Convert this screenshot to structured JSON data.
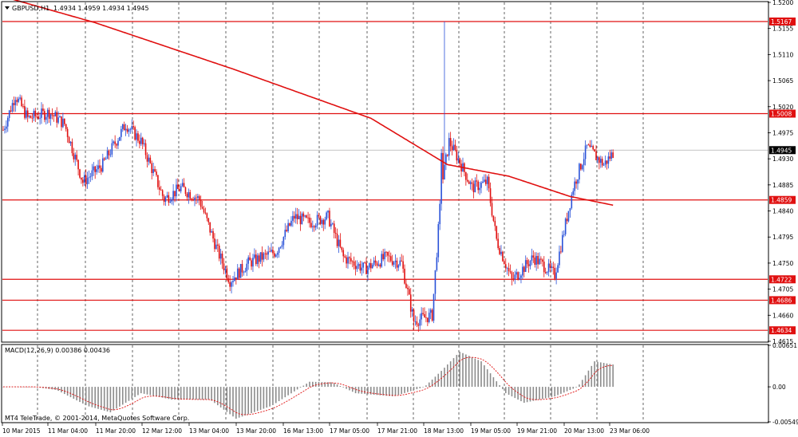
{
  "header": {
    "symbol_label": "GBPUSD,H1",
    "ohlc": "1.4934 1.4959 1.4934 1.4945"
  },
  "macd": {
    "label": "MACD(12,26,9) 0.00386 0.00436",
    "axis_labels": [
      "0.00651",
      "0.00",
      "-0.00549"
    ]
  },
  "watermark": "MT4 TeleTrade, © 2001-2014, MetaQuotes Software Corp.",
  "price_axis": {
    "labels": [
      "1.5200",
      "1.5155",
      "1.5110",
      "1.5065",
      "1.5020",
      "1.4975",
      "1.4930",
      "1.4885",
      "1.4840",
      "1.4795",
      "1.4750",
      "1.4705",
      "1.4660",
      "1.4615"
    ],
    "current_price": "1.4945"
  },
  "levels": [
    {
      "label": "1.5167",
      "value": 1.5167
    },
    {
      "label": "1.5008",
      "value": 1.5008
    },
    {
      "label": "1.4859",
      "value": 1.4859
    },
    {
      "label": "1.4722",
      "value": 1.4722
    },
    {
      "label": "1.4686",
      "value": 1.4686
    },
    {
      "label": "1.4634",
      "value": 1.4634
    }
  ],
  "time_axis": {
    "labels": [
      "10 Mar 2015",
      "11 Mar 04:00",
      "11 Mar 20:00",
      "12 Mar 12:00",
      "13 Mar 04:00",
      "13 Mar 20:00",
      "16 Mar 13:00",
      "17 Mar 05:00",
      "17 Mar 21:00",
      "18 Mar 13:00",
      "19 Mar 05:00",
      "19 Mar 21:00",
      "20 Mar 13:00",
      "23 Mar 06:00"
    ]
  },
  "colors": {
    "bull": "#2a52d8",
    "bear": "#e01010",
    "level_line": "#e01010",
    "ma_line": "#e01010",
    "macd_hist": "#8c8c8c",
    "signal_line": "#e01010",
    "grid": "#000000",
    "label_bg": "#e01010",
    "current_bg": "#000000"
  },
  "chart_data": {
    "type": "candlestick",
    "indicator": "MACD(12,26,9)",
    "price_range": [
      1.4615,
      1.52
    ],
    "macd_range": [
      -0.00549,
      0.00651
    ],
    "price_anchors": [
      [
        0,
        1.498
      ],
      [
        8,
        1.504
      ],
      [
        16,
        1.5
      ],
      [
        30,
        1.501
      ],
      [
        40,
        1.499
      ],
      [
        52,
        1.489
      ],
      [
        65,
        1.492
      ],
      [
        80,
        1.499
      ],
      [
        90,
        1.496
      ],
      [
        105,
        1.486
      ],
      [
        116,
        1.488
      ],
      [
        128,
        1.486
      ],
      [
        140,
        1.477
      ],
      [
        148,
        1.472
      ],
      [
        160,
        1.475
      ],
      [
        178,
        1.477
      ],
      [
        190,
        1.483
      ],
      [
        200,
        1.482
      ],
      [
        212,
        1.483
      ],
      [
        222,
        1.476
      ],
      [
        236,
        1.474
      ],
      [
        250,
        1.476
      ],
      [
        260,
        1.475
      ],
      [
        268,
        1.465
      ],
      [
        280,
        1.466
      ],
      [
        286,
        1.488
      ],
      [
        291,
        1.496
      ],
      [
        297,
        1.493
      ],
      [
        306,
        1.488
      ],
      [
        316,
        1.489
      ],
      [
        322,
        1.479
      ],
      [
        332,
        1.472
      ],
      [
        346,
        1.476
      ],
      [
        360,
        1.473
      ],
      [
        372,
        1.488
      ],
      [
        381,
        1.495
      ],
      [
        392,
        1.492
      ],
      [
        398,
        1.494
      ]
    ],
    "ma_anchors": [
      [
        0,
        1.521
      ],
      [
        60,
        1.5165
      ],
      [
        150,
        1.5085
      ],
      [
        240,
        1.5
      ],
      [
        290,
        1.492
      ],
      [
        330,
        1.49
      ],
      [
        370,
        1.4865
      ],
      [
        398,
        1.485
      ]
    ],
    "macd_anchors": [
      [
        0,
        0.0
      ],
      [
        20,
        0.0
      ],
      [
        35,
        -0.0005
      ],
      [
        55,
        -0.003
      ],
      [
        70,
        -0.004
      ],
      [
        90,
        -0.001
      ],
      [
        110,
        -0.002
      ],
      [
        135,
        -0.002
      ],
      [
        152,
        -0.005
      ],
      [
        175,
        -0.003
      ],
      [
        200,
        0.0008
      ],
      [
        215,
        0.0007
      ],
      [
        230,
        -0.001
      ],
      [
        255,
        -0.0015
      ],
      [
        275,
        0.0
      ],
      [
        286,
        0.0025
      ],
      [
        298,
        0.0055
      ],
      [
        312,
        0.004
      ],
      [
        328,
        -0.001
      ],
      [
        340,
        -0.0025
      ],
      [
        360,
        -0.0015
      ],
      [
        375,
        0.0
      ],
      [
        386,
        0.004
      ],
      [
        398,
        0.0035
      ]
    ]
  }
}
